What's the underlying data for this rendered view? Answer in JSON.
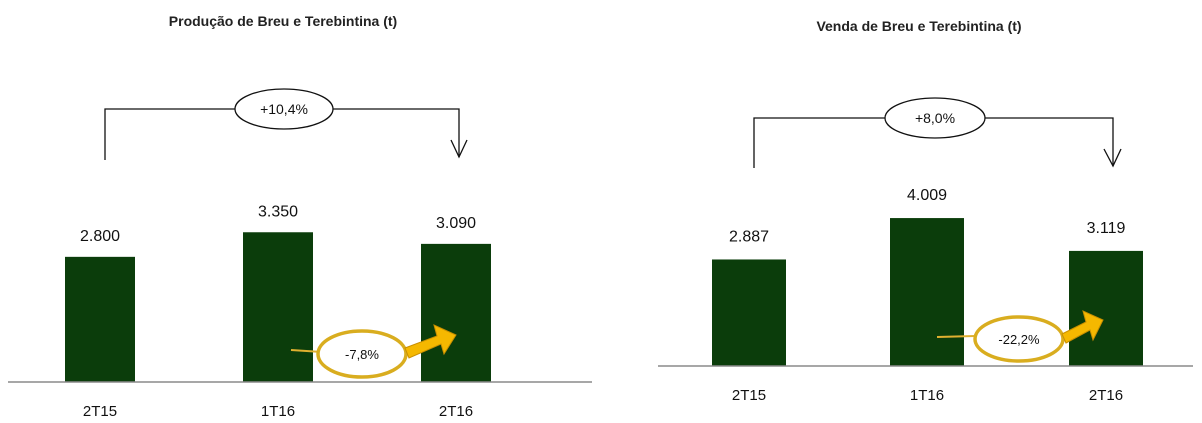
{
  "charts": [
    {
      "title": "Produção de Breu e Terebintina (t)",
      "overall_change": "+10,4%",
      "qoq_change": "-7,8%"
    },
    {
      "title": "Venda de Breu e Terebintina (t)",
      "overall_change": "+8,0%",
      "qoq_change": "-22,2%"
    }
  ],
  "colors": {
    "bar": "#0b3d0b",
    "axis": "#8a8a8a",
    "highlight_oval": "#d9ad1f",
    "arrow": "#f5b800"
  },
  "chart_data": [
    {
      "type": "bar",
      "title": "Produção de Breu e Terebintina (t)",
      "categories": [
        "2T15",
        "1T16",
        "2T16"
      ],
      "values": [
        2800,
        3350,
        3090
      ],
      "value_labels": [
        "2.800",
        "3.350",
        "3.090"
      ],
      "annotations": [
        "+10,4%",
        "-7,8%"
      ]
    },
    {
      "type": "bar",
      "title": "Venda de Breu e Terebintina (t)",
      "categories": [
        "2T15",
        "1T16",
        "2T16"
      ],
      "values": [
        2887,
        4009,
        3119
      ],
      "value_labels": [
        "2.887",
        "4.009",
        "3.119"
      ],
      "annotations": [
        "+8,0%",
        "-22,2%"
      ]
    }
  ]
}
